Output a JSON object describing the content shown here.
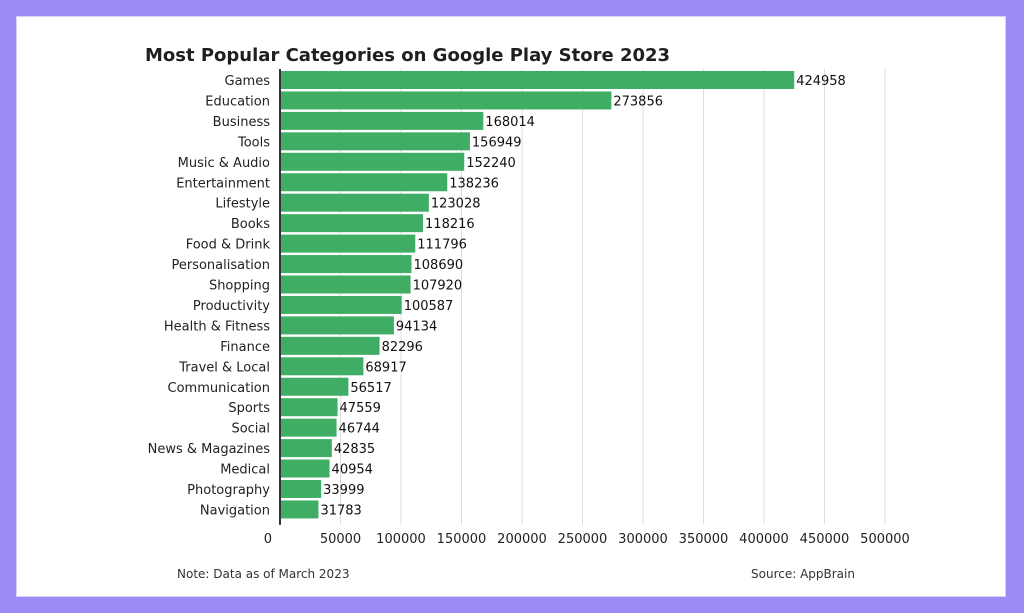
{
  "page": {
    "background_color": "#9b8cf5",
    "card_color": "#ffffff",
    "bar_color": "#3fad63",
    "grid_color": "#dddddd",
    "note": "Note: Data as of March 2023",
    "source": "Source: AppBrain"
  },
  "chart_data": {
    "type": "bar",
    "orientation": "horizontal",
    "title": "Most Popular Categories on Google Play Store 2023",
    "xlabel": "",
    "ylabel": "",
    "xlim": [
      0,
      500000
    ],
    "grid": true,
    "categories": [
      "Games",
      "Education",
      "Business",
      "Tools",
      "Music & Audio",
      "Entertainment",
      "Lifestyle",
      "Books",
      "Food & Drink",
      "Personalisation",
      "Shopping",
      "Productivity",
      "Health & Fitness",
      "Finance",
      "Travel & Local",
      "Communication",
      "Sports",
      "Social",
      "News & Magazines",
      "Medical",
      "Photography",
      "Navigation"
    ],
    "values": [
      424958,
      273856,
      168014,
      156949,
      152240,
      138236,
      123028,
      118216,
      111796,
      108690,
      107920,
      100587,
      94134,
      82296,
      68917,
      56517,
      47559,
      46744,
      42835,
      40954,
      33999,
      31783
    ],
    "x_ticks": [
      "0",
      "50000",
      "100000",
      "150000",
      "200000",
      "250000",
      "300000",
      "350000",
      "400000",
      "450000",
      "500000"
    ]
  }
}
